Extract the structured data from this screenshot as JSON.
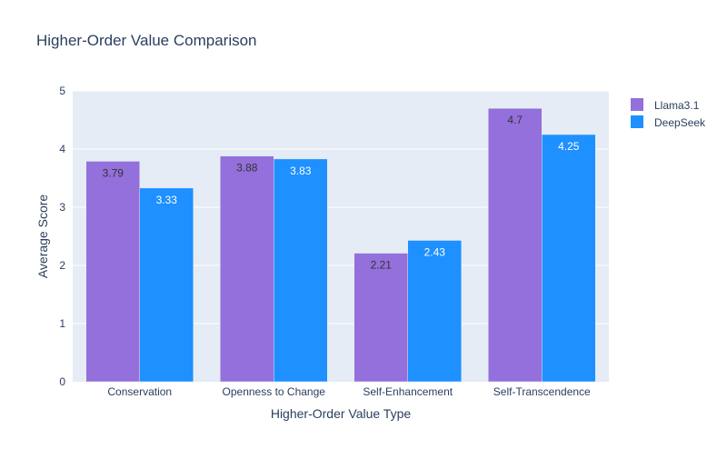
{
  "chart_data": {
    "type": "bar",
    "title": "Higher-Order Value Comparison",
    "xlabel": "Higher-Order Value Type",
    "ylabel": "Average Score",
    "categories": [
      "Conservation",
      "Openness to Change",
      "Self-Enhancement",
      "Self-Transcendence"
    ],
    "series": [
      {
        "name": "Llama3.1",
        "color": "#9370DB",
        "label_color": "#333333",
        "values": [
          3.79,
          3.88,
          2.21,
          4.7
        ],
        "labels": [
          "3.79",
          "3.88",
          "2.21",
          "4.7"
        ]
      },
      {
        "name": "DeepSeek",
        "color": "#1E90FF",
        "label_color": "#ffffff",
        "values": [
          3.33,
          3.83,
          2.43,
          4.25
        ],
        "labels": [
          "3.33",
          "3.83",
          "2.43",
          "4.25"
        ]
      }
    ],
    "ylim": [
      0,
      5
    ],
    "yticks": [
      "0",
      "1",
      "2",
      "3",
      "4",
      "5"
    ],
    "grid": true,
    "legend_position": "top-right",
    "plot_background": "#E5ECF6",
    "text_color": "#2a3f5f"
  }
}
